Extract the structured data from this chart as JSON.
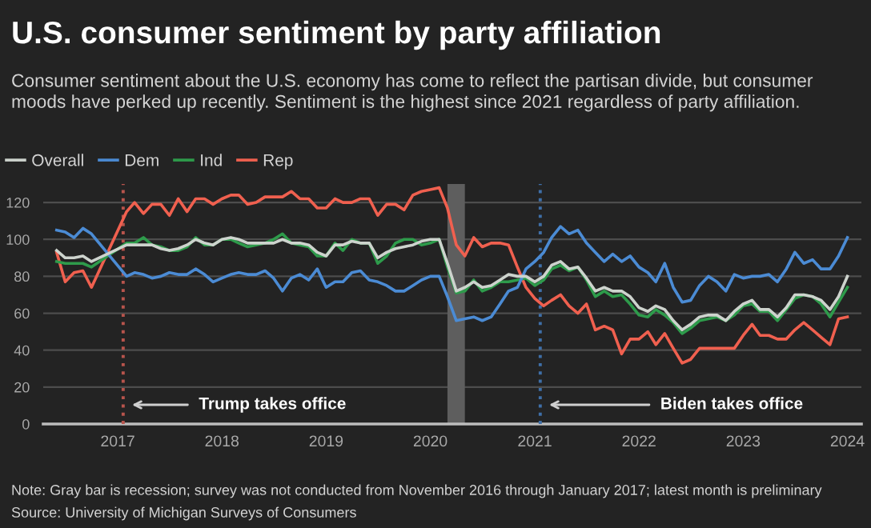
{
  "chart_data": {
    "type": "line",
    "title": "U.S. consumer sentiment by party affiliation",
    "subtitle": "Consumer sentiment about the U.S. economy has come to reflect the partisan divide, but consumer moods have perked up recently. Sentiment is the highest since 2021 regardless of party affiliation.",
    "x": [
      "2016-06",
      "2016-07",
      "2016-08",
      "2016-09",
      "2016-10",
      "2017-02",
      "2017-03",
      "2017-04",
      "2017-05",
      "2017-06",
      "2017-07",
      "2017-08",
      "2017-09",
      "2017-10",
      "2017-11",
      "2017-12",
      "2018-01",
      "2018-02",
      "2018-03",
      "2018-04",
      "2018-05",
      "2018-06",
      "2018-07",
      "2018-08",
      "2018-09",
      "2018-10",
      "2018-11",
      "2018-12",
      "2019-01",
      "2019-02",
      "2019-03",
      "2019-04",
      "2019-05",
      "2019-06",
      "2019-07",
      "2019-08",
      "2019-09",
      "2019-10",
      "2019-11",
      "2019-12",
      "2020-01",
      "2020-02",
      "2020-03",
      "2020-04",
      "2020-05",
      "2020-06",
      "2020-07",
      "2020-08",
      "2020-09",
      "2020-10",
      "2020-11",
      "2020-12",
      "2021-01",
      "2021-02",
      "2021-03",
      "2021-04",
      "2021-05",
      "2021-06",
      "2021-07",
      "2021-08",
      "2021-09",
      "2021-10",
      "2021-11",
      "2021-12",
      "2022-01",
      "2022-02",
      "2022-03",
      "2022-04",
      "2022-05",
      "2022-06",
      "2022-07",
      "2022-08",
      "2022-09",
      "2022-10",
      "2022-11",
      "2022-12",
      "2023-01",
      "2023-02",
      "2023-03",
      "2023-04",
      "2023-05",
      "2023-06",
      "2023-07",
      "2023-08",
      "2023-09",
      "2023-10",
      "2023-11",
      "2023-12",
      "2024-01"
    ],
    "series": [
      {
        "name": "Overall",
        "color": "#cdd3cd",
        "values": [
          94,
          90,
          90,
          91,
          88,
          97,
          97,
          97,
          97,
          95,
          94,
          95,
          97,
          100,
          98,
          97,
          100,
          101,
          100,
          98,
          98,
          98,
          98,
          100,
          98,
          98,
          97,
          93,
          91,
          97,
          97,
          99,
          98,
          98,
          90,
          93,
          95,
          96,
          97,
          99,
          100,
          100,
          87,
          72,
          74,
          77,
          74,
          75,
          78,
          81,
          80,
          80,
          77,
          80,
          86,
          88,
          84,
          85,
          79,
          72,
          74,
          72,
          72,
          69,
          63,
          61,
          64,
          62,
          56,
          51,
          54,
          58,
          59,
          59,
          56,
          61,
          65,
          67,
          62,
          62,
          58,
          63,
          70,
          70,
          69,
          67,
          62,
          69,
          80
        ]
      },
      {
        "name": "Dem",
        "color": "#4b8bd4",
        "values": [
          105,
          104,
          101,
          106,
          103,
          80,
          82,
          81,
          79,
          80,
          82,
          81,
          81,
          84,
          81,
          77,
          79,
          81,
          82,
          81,
          81,
          83,
          79,
          72,
          79,
          81,
          78,
          84,
          74,
          77,
          77,
          82,
          83,
          78,
          77,
          75,
          72,
          72,
          75,
          78,
          80,
          80,
          69,
          56,
          57,
          58,
          56,
          58,
          65,
          72,
          74,
          84,
          88,
          93,
          101,
          107,
          103,
          105,
          98,
          93,
          88,
          92,
          88,
          91,
          85,
          82,
          77,
          87,
          74,
          66,
          67,
          75,
          80,
          77,
          72,
          81,
          79,
          80,
          80,
          81,
          77,
          84,
          93,
          87,
          89,
          84,
          84,
          91,
          101
        ]
      },
      {
        "name": "Ind",
        "color": "#2e9b4b",
        "values": [
          88,
          87,
          87,
          87,
          85,
          98,
          98,
          101,
          97,
          96,
          94,
          94,
          96,
          101,
          97,
          97,
          100,
          100,
          98,
          96,
          97,
          98,
          100,
          103,
          98,
          97,
          96,
          91,
          91,
          98,
          94,
          100,
          98,
          98,
          87,
          91,
          98,
          100,
          100,
          97,
          98,
          100,
          85,
          71,
          72,
          78,
          72,
          74,
          77,
          77,
          78,
          79,
          75,
          78,
          84,
          86,
          83,
          85,
          78,
          69,
          72,
          69,
          70,
          65,
          59,
          58,
          62,
          59,
          55,
          49,
          52,
          56,
          57,
          58,
          56,
          59,
          64,
          65,
          61,
          61,
          56,
          62,
          68,
          70,
          69,
          65,
          58,
          66,
          74
        ]
      },
      {
        "name": "Rep",
        "color": "#f0604f",
        "values": [
          93,
          77,
          82,
          83,
          74,
          115,
          120,
          114,
          119,
          119,
          113,
          122,
          115,
          122,
          122,
          119,
          122,
          124,
          124,
          119,
          120,
          123,
          123,
          123,
          126,
          122,
          122,
          117,
          117,
          122,
          120,
          120,
          122,
          122,
          113,
          119,
          119,
          116,
          124,
          126,
          127,
          128,
          117,
          97,
          91,
          101,
          96,
          98,
          98,
          97,
          85,
          74,
          68,
          64,
          67,
          70,
          64,
          60,
          65,
          51,
          53,
          51,
          38,
          46,
          46,
          50,
          43,
          49,
          41,
          33,
          35,
          41,
          41,
          41,
          41,
          41,
          48,
          54,
          48,
          48,
          46,
          46,
          51,
          55,
          51,
          47,
          43,
          57,
          58
        ]
      }
    ],
    "xlim": [
      "2016-04-15",
      "2024-02-19"
    ],
    "xticks": [
      "2017",
      "2018",
      "2019",
      "2020",
      "2021",
      "2022",
      "2023",
      "2024"
    ],
    "ylim": [
      0,
      130
    ],
    "yticks": [
      0,
      20,
      40,
      60,
      80,
      100,
      120
    ],
    "grid": "y",
    "legend": "top left",
    "ref_lines": [
      {
        "axis": "x",
        "value": "2017-01-20",
        "label": "Trump takes office",
        "color": "#b8544c",
        "line_style": "dotted"
      },
      {
        "axis": "x",
        "value": "2021-01-20",
        "label": "Biden takes office",
        "color": "#3f6fa8",
        "line_style": "dotted"
      }
    ],
    "bands": [
      {
        "axis": "x",
        "from": "2020-03",
        "to": "2020-05",
        "color": "#5e5e5e"
      }
    ],
    "annotations": [
      "Note: Gray bar is recession; survey was not conducted from November 2016 through January 2017; latest month is preliminary",
      "Source: University of Michigan Surveys of Consumers"
    ]
  }
}
